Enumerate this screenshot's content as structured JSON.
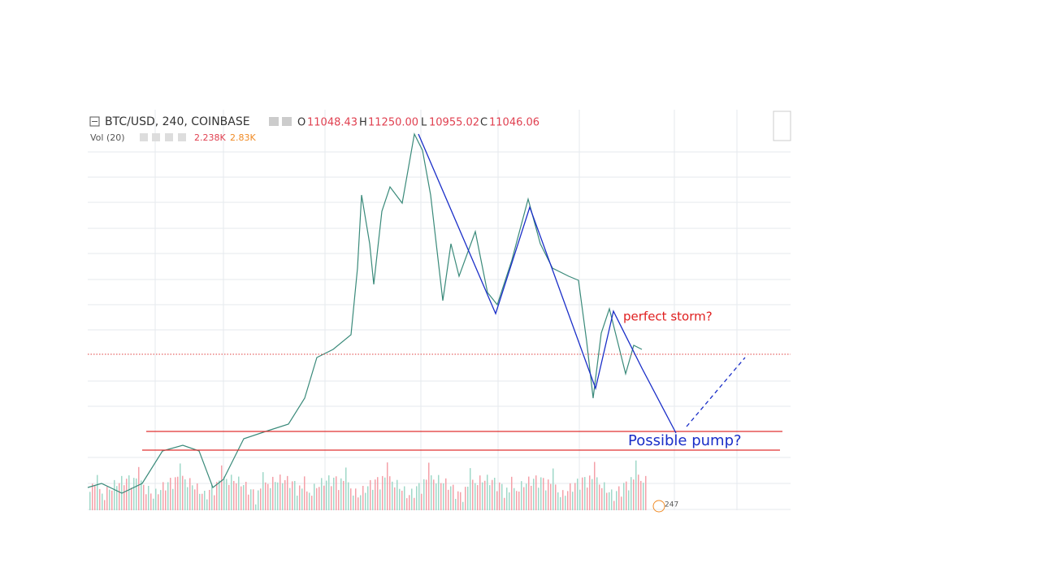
{
  "header": {
    "symbol": "BTC/USD, 240, COINBASE",
    "open_label": "O",
    "open": "11048.43",
    "high_label": "H",
    "high": "11250.00",
    "low_label": "L",
    "low": "10955.02",
    "close_label": "C",
    "close": "11046.06"
  },
  "volume": {
    "label": "Vol (20)",
    "value_a": "2.238K",
    "value_b": "2.83K"
  },
  "annotations": {
    "storm": "perfect storm?",
    "pump": "Possible pump?"
  },
  "badge": "247"
}
